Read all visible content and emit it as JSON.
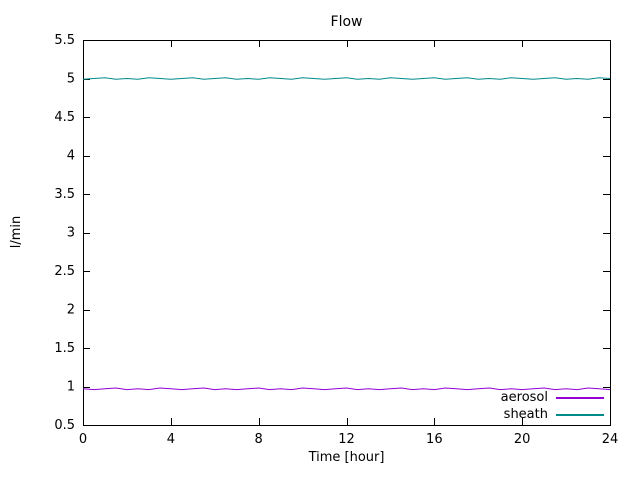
{
  "chart_data": {
    "type": "line",
    "title": "Flow",
    "xlabel": "Time [hour]",
    "ylabel": "l/min",
    "xlim": [
      0,
      24
    ],
    "ylim": [
      0.5,
      5.5
    ],
    "grid": false,
    "legend_position": "bottom-right-inside",
    "xticks": [
      0,
      4,
      8,
      12,
      16,
      20,
      24
    ],
    "xtick_labels": [
      "0",
      "4",
      "8",
      "12",
      "16",
      "20",
      "24"
    ],
    "yticks": [
      0.5,
      1,
      1.5,
      2,
      2.5,
      3,
      3.5,
      4,
      4.5,
      5,
      5.5
    ],
    "ytick_labels": [
      "0.5",
      "1",
      "1.5",
      "2",
      "2.5",
      "3",
      "3.5",
      "4",
      "4.5",
      "5",
      "5.5"
    ],
    "x": [
      0,
      0.5,
      1,
      1.5,
      2,
      2.5,
      3,
      3.5,
      4,
      4.5,
      5,
      5.5,
      6,
      6.5,
      7,
      7.5,
      8,
      8.5,
      9,
      9.5,
      10,
      10.5,
      11,
      11.5,
      12,
      12.5,
      13,
      13.5,
      14,
      14.5,
      15,
      15.5,
      16,
      16.5,
      17,
      17.5,
      18,
      18.5,
      19,
      19.5,
      20,
      20.5,
      21,
      21.5,
      22,
      22.5,
      23,
      23.5,
      24
    ],
    "series": [
      {
        "name": "aerosol",
        "color": "#9400d3",
        "mean": 0.97,
        "values": [
          0.97,
          0.96,
          0.97,
          0.98,
          0.96,
          0.97,
          0.96,
          0.98,
          0.97,
          0.96,
          0.97,
          0.98,
          0.96,
          0.97,
          0.96,
          0.97,
          0.98,
          0.96,
          0.97,
          0.96,
          0.98,
          0.97,
          0.96,
          0.97,
          0.98,
          0.96,
          0.97,
          0.96,
          0.97,
          0.98,
          0.96,
          0.97,
          0.96,
          0.98,
          0.97,
          0.96,
          0.97,
          0.98,
          0.96,
          0.97,
          0.96,
          0.97,
          0.98,
          0.96,
          0.97,
          0.96,
          0.98,
          0.97,
          0.96
        ]
      },
      {
        "name": "sheath",
        "color": "#008b8b",
        "mean": 5.0,
        "values": [
          4.99,
          5.0,
          5.01,
          4.99,
          5.0,
          4.99,
          5.01,
          5.0,
          4.99,
          5.0,
          5.01,
          4.99,
          5.0,
          5.01,
          4.99,
          5.0,
          4.99,
          5.01,
          5.0,
          4.99,
          5.01,
          5.0,
          4.99,
          5.0,
          5.01,
          4.99,
          5.0,
          4.99,
          5.01,
          5.0,
          4.99,
          5.0,
          5.01,
          4.99,
          5.0,
          5.01,
          4.99,
          5.0,
          4.99,
          5.01,
          5.0,
          4.99,
          5.0,
          5.01,
          4.99,
          5.0,
          4.99,
          5.01,
          5.0
        ]
      }
    ]
  }
}
